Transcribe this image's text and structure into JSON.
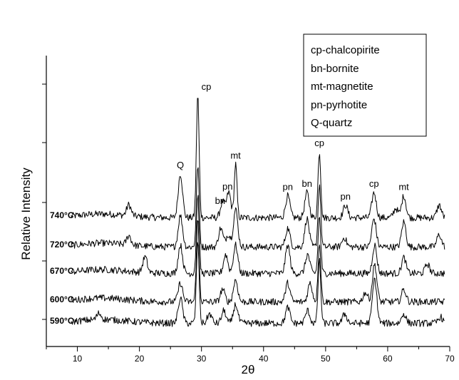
{
  "chart_data": {
    "type": "line",
    "xlabel": "2θ",
    "ylabel": "Relative Intensity",
    "xlim": [
      5,
      70
    ],
    "xticks": [
      10,
      20,
      30,
      40,
      50,
      60,
      70
    ],
    "grid": false,
    "legend_position": "top-right",
    "legend": [
      "cp-chalcopirite",
      "bn-bornite",
      "mt-magnetite",
      "pn-pyrhotite",
      "Q-quartz"
    ],
    "series": [
      {
        "name": "740°C",
        "offset": 4,
        "base": 0.15,
        "peaks": [
          [
            18.3,
            0.35
          ],
          [
            26.6,
            1.4
          ],
          [
            29.4,
            3.9
          ],
          [
            33.4,
            0.5
          ],
          [
            34.4,
            0.8
          ],
          [
            35.5,
            1.7
          ],
          [
            43.9,
            0.7
          ],
          [
            47.0,
            0.8
          ],
          [
            49.0,
            2.1
          ],
          [
            53.2,
            0.4
          ],
          [
            57.8,
            0.8
          ],
          [
            62.6,
            0.7
          ],
          [
            61.3,
            0.3
          ],
          [
            68.3,
            0.4
          ]
        ]
      },
      {
        "name": "720°C",
        "offset": 3,
        "base": 0.15,
        "peaks": [
          [
            18.3,
            0.3
          ],
          [
            26.6,
            1.0
          ],
          [
            29.4,
            2.6
          ],
          [
            33.1,
            0.6
          ],
          [
            34.3,
            0.4
          ],
          [
            35.5,
            1.2
          ],
          [
            43.9,
            0.6
          ],
          [
            47.0,
            0.9
          ],
          [
            49.0,
            2.0
          ],
          [
            53.0,
            0.3
          ],
          [
            57.8,
            0.9
          ],
          [
            62.6,
            0.8
          ],
          [
            68.3,
            0.4
          ]
        ]
      },
      {
        "name": "670°C",
        "offset": 2,
        "base": 0.15,
        "peaks": [
          [
            20.9,
            0.5
          ],
          [
            26.6,
            0.9
          ],
          [
            29.4,
            2.5
          ],
          [
            33.9,
            0.6
          ],
          [
            35.5,
            0.9
          ],
          [
            43.9,
            0.9
          ],
          [
            47.1,
            0.6
          ],
          [
            49.0,
            1.8
          ],
          [
            57.9,
            0.9
          ],
          [
            62.6,
            0.5
          ],
          [
            66.4,
            0.3
          ]
        ]
      },
      {
        "name": "600°C",
        "offset": 1,
        "base": 0.15,
        "peaks": [
          [
            26.6,
            0.6
          ],
          [
            29.4,
            2.6
          ],
          [
            33.4,
            0.4
          ],
          [
            35.5,
            0.7
          ],
          [
            43.9,
            0.6
          ],
          [
            47.5,
            0.6
          ],
          [
            49.0,
            1.9
          ],
          [
            56.4,
            0.3
          ],
          [
            57.9,
            1.2
          ],
          [
            62.6,
            0.4
          ]
        ]
      },
      {
        "name": "590°C",
        "offset": 0,
        "base": 0.15,
        "peaks": [
          [
            13.5,
            0.2
          ],
          [
            26.6,
            0.8
          ],
          [
            29.4,
            2.6
          ],
          [
            31.3,
            0.3
          ],
          [
            33.6,
            0.4
          ],
          [
            35.5,
            0.6
          ],
          [
            43.9,
            0.5
          ],
          [
            47.1,
            0.4
          ],
          [
            49.0,
            2.0
          ],
          [
            53.1,
            0.3
          ],
          [
            57.9,
            1.4
          ],
          [
            62.6,
            0.3
          ],
          [
            68.5,
            0.2
          ]
        ]
      }
    ],
    "annotations": [
      {
        "text": "Q",
        "x": 26.6,
        "series": "740°C"
      },
      {
        "text": "cp",
        "x": 29.4,
        "series": "740°C"
      },
      {
        "text": "bn",
        "x": 33.0,
        "series": "740°C"
      },
      {
        "text": "pn",
        "x": 34.2,
        "series": "740°C"
      },
      {
        "text": "mt",
        "x": 35.5,
        "series": "740°C"
      },
      {
        "text": "pn",
        "x": 43.9,
        "series": "740°C"
      },
      {
        "text": "bn",
        "x": 47.0,
        "series": "740°C"
      },
      {
        "text": "cp",
        "x": 49.0,
        "series": "740°C"
      },
      {
        "text": "pn",
        "x": 53.2,
        "series": "740°C"
      },
      {
        "text": "cp",
        "x": 57.8,
        "series": "740°C"
      },
      {
        "text": "mt",
        "x": 62.6,
        "series": "740°C"
      }
    ]
  }
}
